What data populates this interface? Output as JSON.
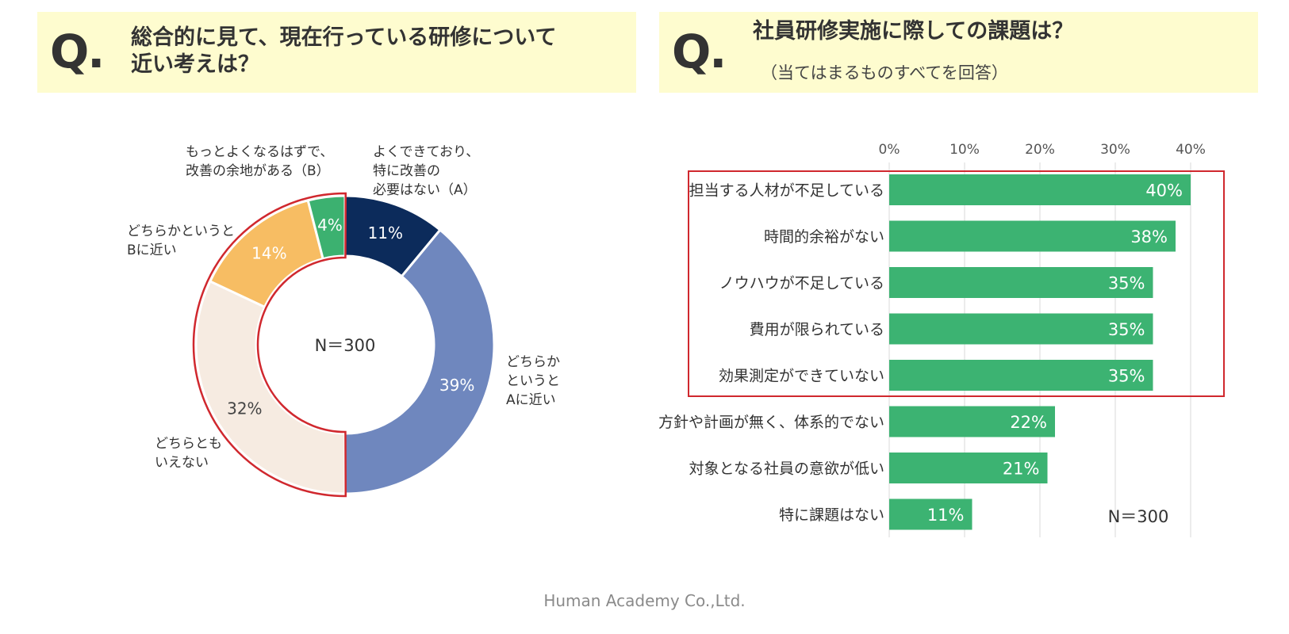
{
  "left_question": {
    "q_mark": "Q.",
    "title": "総合的に見て、現在行っている研修について\n近い考えは？"
  },
  "right_question": {
    "q_mark": "Q.",
    "title": "社員研修実施に際しての課題は？",
    "subtitle": "（当てはまるものすべてを回答）"
  },
  "footer": "Human Academy Co.,Ltd.",
  "chart_data": [
    {
      "type": "pie",
      "variant": "donut",
      "center_label": "N＝300",
      "slices": [
        {
          "label": "よくできており、特に改善の必要はない（A）",
          "label_lines": [
            "よくできており、",
            "特に改善の",
            "必要はない（A）"
          ],
          "value": 11,
          "value_label": "11%",
          "color": "#0c2b5b"
        },
        {
          "label": "どちらかというとAに近い",
          "label_lines": [
            "どちらか",
            "というと",
            "Aに近い"
          ],
          "value": 39,
          "value_label": "39%",
          "color": "#6f87be"
        },
        {
          "label": "どちらともいえない",
          "label_lines": [
            "どちらとも",
            "いえない"
          ],
          "value": 32,
          "value_label": "32%",
          "color": "#f6ebe1"
        },
        {
          "label": "どちらかというとBに近い",
          "label_lines": [
            "どちらかというと",
            "Bに近い"
          ],
          "value": 14,
          "value_label": "14%",
          "color": "#f7bd63"
        },
        {
          "label": "もっとよくなるはずで、改善の余地がある（B）",
          "label_lines": [
            "もっとよくなるはずで、",
            "改善の余地がある（B）"
          ],
          "value": 4,
          "value_label": "4%",
          "color": "#3cb170"
        }
      ],
      "highlight": {
        "slices": [
          2,
          3,
          4
        ],
        "color": "#d0282e"
      }
    },
    {
      "type": "bar",
      "orientation": "horizontal",
      "categories": [
        "担当する人材が不足している",
        "時間的余裕がない",
        "ノウハウが不足している",
        "費用が限られている",
        "効果測定ができていない",
        "方針や計画が無く、体系的でない",
        "対象となる社員の意欲が低い",
        "特に課題はない"
      ],
      "values": [
        40,
        38,
        35,
        35,
        35,
        22,
        21,
        11
      ],
      "value_labels": [
        "40%",
        "38%",
        "35%",
        "35%",
        "35%",
        "22%",
        "21%",
        "11%"
      ],
      "xlim": [
        0,
        40
      ],
      "xticks": [
        0,
        10,
        20,
        30,
        40
      ],
      "xtick_labels": [
        "0%",
        "10%",
        "20%",
        "30%",
        "40%"
      ],
      "bar_color": "#3cb372",
      "grid": true,
      "annotation": "N＝300",
      "highlight": {
        "categories": [
          0,
          1,
          2,
          3,
          4
        ],
        "color": "#d0282e"
      }
    }
  ]
}
